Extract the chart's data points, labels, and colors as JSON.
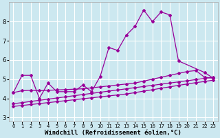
{
  "background_color": "#cce8f0",
  "grid_color": "#ffffff",
  "line_color": "#990099",
  "xlabel": "Windchill (Refroidissement éolien,°C)",
  "xlabel_fontsize": 6.5,
  "yticks": [
    3,
    4,
    5,
    6,
    7,
    8
  ],
  "xticks": [
    0,
    1,
    2,
    3,
    4,
    5,
    6,
    7,
    8,
    9,
    10,
    11,
    12,
    13,
    14,
    15,
    16,
    17,
    18,
    19,
    20,
    21,
    22,
    23
  ],
  "xlim": [
    -0.5,
    23.5
  ],
  "ylim": [
    2.8,
    9.0
  ],
  "line1_x": [
    0,
    1,
    2,
    3,
    4,
    5,
    6,
    7,
    8,
    9,
    10,
    11,
    12,
    13,
    14,
    15,
    16,
    17,
    18,
    19,
    22,
    23
  ],
  "line1_y": [
    4.3,
    5.2,
    5.2,
    4.0,
    4.8,
    4.35,
    4.35,
    4.35,
    4.7,
    4.35,
    5.15,
    6.65,
    6.5,
    7.3,
    7.75,
    8.6,
    8.0,
    8.5,
    8.35,
    5.95,
    5.35,
    5.05
  ],
  "line2_x": [
    0,
    1,
    2,
    3,
    4,
    5,
    6,
    7,
    8,
    9,
    10,
    11,
    12,
    13,
    14,
    15,
    16,
    17,
    18,
    19,
    20,
    21,
    22,
    23
  ],
  "line2_y": [
    4.3,
    4.4,
    4.42,
    4.4,
    4.42,
    4.44,
    4.46,
    4.48,
    4.5,
    4.55,
    4.6,
    4.65,
    4.7,
    4.75,
    4.8,
    4.9,
    5.0,
    5.1,
    5.2,
    5.3,
    5.4,
    5.45,
    5.1,
    5.05
  ],
  "line3_x": [
    0,
    1,
    2,
    3,
    4,
    5,
    6,
    7,
    8,
    9,
    10,
    11,
    12,
    13,
    14,
    15,
    16,
    17,
    18,
    19,
    20,
    21,
    22,
    23
  ],
  "line3_y": [
    3.58,
    3.63,
    3.68,
    3.73,
    3.78,
    3.83,
    3.88,
    3.93,
    3.98,
    4.03,
    4.08,
    4.13,
    4.18,
    4.23,
    4.3,
    4.38,
    4.45,
    4.53,
    4.6,
    4.68,
    4.75,
    4.82,
    4.88,
    4.95
  ],
  "line4_x": [
    0,
    1,
    2,
    3,
    4,
    5,
    6,
    7,
    8,
    9,
    10,
    11,
    12,
    13,
    14,
    15,
    16,
    17,
    18,
    19,
    20,
    21,
    22,
    23
  ],
  "line4_y": [
    3.72,
    3.78,
    3.84,
    3.9,
    3.96,
    4.02,
    4.08,
    4.14,
    4.2,
    4.26,
    4.32,
    4.38,
    4.44,
    4.5,
    4.56,
    4.62,
    4.68,
    4.74,
    4.8,
    4.86,
    4.92,
    4.98,
    5.04,
    5.1
  ]
}
